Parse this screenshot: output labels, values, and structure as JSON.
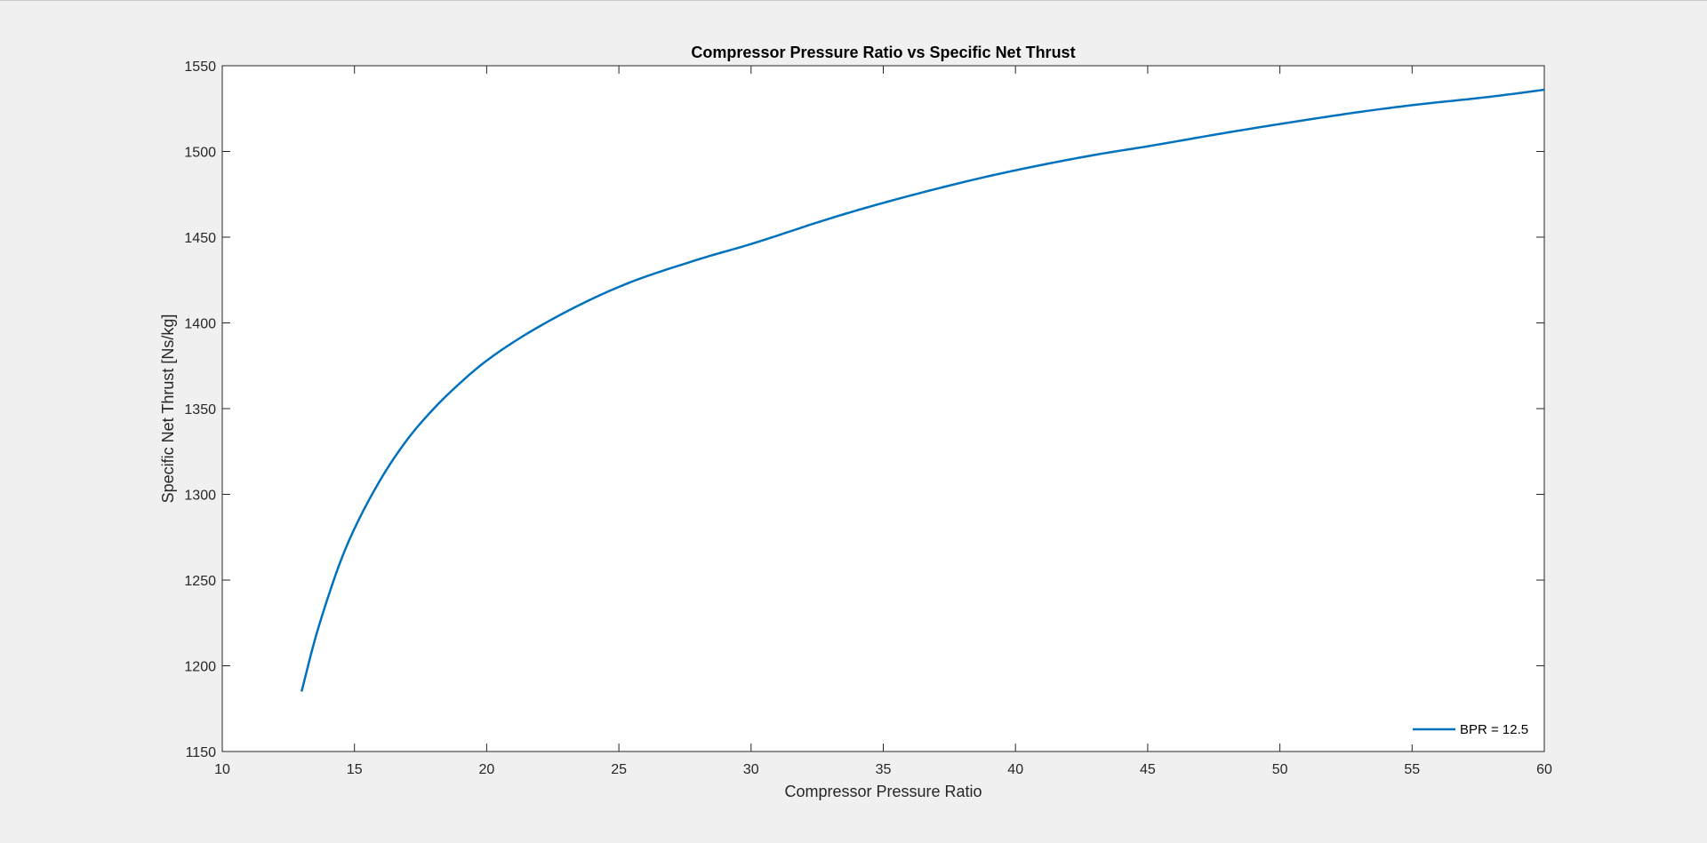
{
  "chart_data": {
    "type": "line",
    "title": "Compressor Pressure Ratio vs Specific Net Thrust",
    "xlabel": "Compressor Pressure Ratio",
    "ylabel": "Specific Net Thrust [Ns/kg]",
    "xlim": [
      10,
      60
    ],
    "ylim": [
      1150,
      1550
    ],
    "xticks": [
      "10",
      "15",
      "20",
      "25",
      "30",
      "35",
      "40",
      "45",
      "50",
      "55",
      "60"
    ],
    "yticks": [
      "1150",
      "1200",
      "1250",
      "1300",
      "1350",
      "1400",
      "1450",
      "1500",
      "1550"
    ],
    "grid": false,
    "legend_position": "bottom-right",
    "series": [
      {
        "name": "BPR = 12.5",
        "color": "#0072bd",
        "x": [
          13,
          13.5,
          14,
          14.5,
          15,
          16,
          17,
          18,
          19,
          20,
          22,
          25,
          28,
          30,
          33,
          35,
          38,
          40,
          43,
          45,
          48,
          50,
          53,
          55,
          58,
          60
        ],
        "y": [
          1185,
          1215,
          1240,
          1262,
          1280,
          1309,
          1332,
          1350,
          1365,
          1378,
          1398,
          1421,
          1437,
          1446,
          1461,
          1470,
          1482,
          1489,
          1498,
          1503,
          1511,
          1516,
          1523,
          1527,
          1532,
          1536
        ]
      }
    ]
  }
}
